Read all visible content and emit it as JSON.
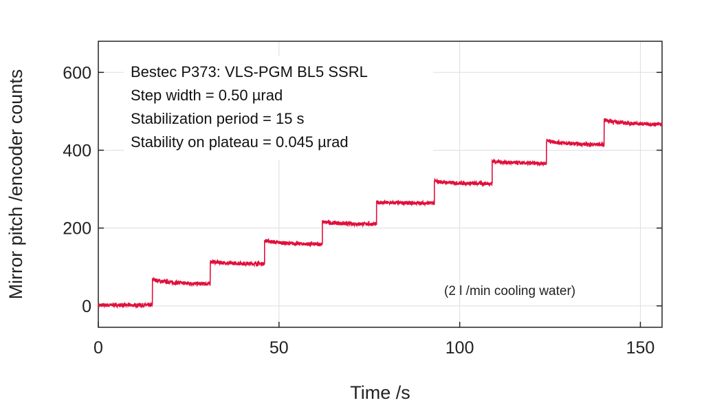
{
  "chart_data": {
    "type": "line",
    "title": "",
    "xlabel": "Time /s",
    "ylabel": "Mirror pitch /encoder counts",
    "xlim": [
      0,
      156
    ],
    "ylim": [
      -55,
      680
    ],
    "xticks": [
      0,
      50,
      100,
      150
    ],
    "yticks": [
      0,
      200,
      400,
      600
    ],
    "grid": true,
    "line_color": "#e0103c",
    "annotations": [
      "Bestec P373: VLS-PGM BL5 SSRL",
      "Step width = 0.50 µrad",
      "Stabilization period = 15 s",
      "Stability on plateau = 0.045 µrad"
    ],
    "note": "(2 l /min cooling water)",
    "series": [
      {
        "name": "Mirror pitch",
        "steps": [
          {
            "t_start": 0,
            "t_end": 15,
            "v_start": 2,
            "v_end": 2
          },
          {
            "t_start": 15,
            "t_end": 31,
            "v_start": 68,
            "v_end": 56
          },
          {
            "t_start": 31,
            "t_end": 46,
            "v_start": 114,
            "v_end": 108
          },
          {
            "t_start": 46,
            "t_end": 62,
            "v_start": 168,
            "v_end": 158
          },
          {
            "t_start": 62,
            "t_end": 77,
            "v_start": 216,
            "v_end": 210
          },
          {
            "t_start": 77,
            "t_end": 93,
            "v_start": 266,
            "v_end": 264
          },
          {
            "t_start": 93,
            "t_end": 109,
            "v_start": 320,
            "v_end": 314
          },
          {
            "t_start": 109,
            "t_end": 124,
            "v_start": 372,
            "v_end": 366
          },
          {
            "t_start": 124,
            "t_end": 140,
            "v_start": 425,
            "v_end": 414
          },
          {
            "t_start": 140,
            "t_end": 156,
            "v_start": 478,
            "v_end": 466
          }
        ]
      }
    ]
  }
}
